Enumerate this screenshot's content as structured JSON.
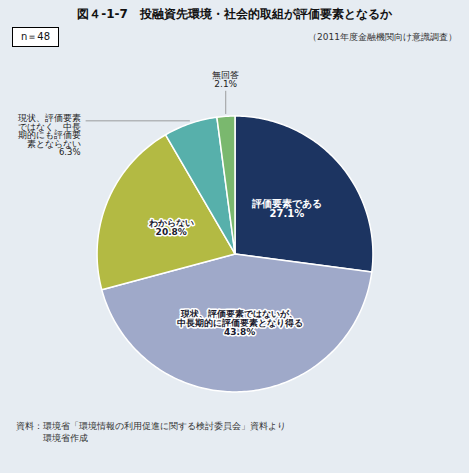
{
  "chart_data": {
    "type": "pie",
    "title": "図４-1-7　投融資先環境・社会的取組が評価要素となるか",
    "subtitle": "（2011年度金融機関向け意識調査）",
    "annotations": [
      "n＝48"
    ],
    "caption": "資料：環境省「環境情報の利用促進に関する検討委員会」資料より\n　　　環境省作成",
    "categories": [
      "評価要素である\n27.1%",
      "現状、評価要素ではないが、\n中長期的に評価要素となり得る\n43.8%",
      "わからない\n20.8%",
      "現状、評価要素\nではなく、中長\n期的にも評価要\n素とならない\n6.3%",
      "無回答\n2.1%"
    ],
    "values": [
      27.1,
      43.8,
      20.8,
      6.3,
      2.1
    ],
    "colors": [
      "#1c3461",
      "#9fa9c9",
      "#b3ba43",
      "#57b0ab",
      "#7ab86e"
    ]
  }
}
